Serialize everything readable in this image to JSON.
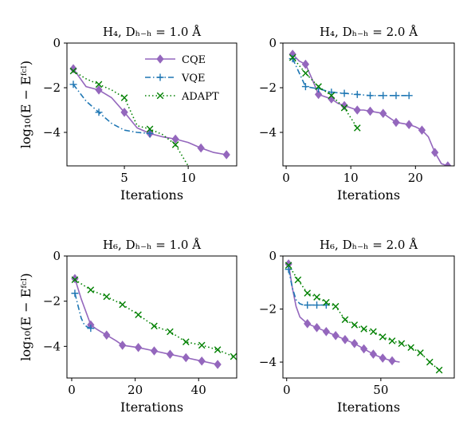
{
  "chart_data": [
    {
      "type": "line",
      "title": "H₄, Dₕ₋ₕ = 1.0 Å",
      "xlabel": "Iterations",
      "ylabel": "log₁₀(E − Eᶠᶜᴵ)",
      "xlim": [
        0.5,
        13.8
      ],
      "ylim": [
        -5.5,
        0
      ],
      "xticks": [
        5,
        10
      ],
      "yticks": [
        0,
        -2,
        -4
      ],
      "grid": false,
      "legend": "top-right",
      "series": [
        {
          "name": "CQE",
          "color": "#9467bd",
          "style": "solid",
          "marker": "diamond",
          "x": [
            1,
            2,
            3,
            4,
            5,
            6,
            7,
            8,
            9,
            10,
            11,
            12,
            13
          ],
          "y": [
            -1.15,
            -1.95,
            -2.1,
            -2.45,
            -3.1,
            -3.8,
            -4.05,
            -4.2,
            -4.3,
            -4.45,
            -4.7,
            -4.9,
            -5.0
          ],
          "markers_at": [
            1,
            3,
            5,
            7,
            9,
            11,
            13
          ]
        },
        {
          "name": "VQE",
          "color": "#1f77b4",
          "style": "dashdot",
          "marker": "plus",
          "x": [
            1,
            2,
            3,
            4,
            5,
            6,
            7
          ],
          "y": [
            -1.85,
            -2.6,
            -3.1,
            -3.6,
            -3.9,
            -4.0,
            -4.05
          ],
          "markers_at": [
            1,
            3,
            7
          ]
        },
        {
          "name": "ADAPT",
          "color": "#008000",
          "style": "dotted",
          "marker": "x",
          "x": [
            1,
            2,
            3,
            4,
            5,
            6,
            7,
            8,
            9,
            10
          ],
          "y": [
            -1.25,
            -1.6,
            -1.85,
            -2.1,
            -2.45,
            -3.7,
            -3.85,
            -4.1,
            -4.55,
            -5.5
          ],
          "markers_at": [
            1,
            3,
            5,
            7,
            9
          ]
        }
      ]
    },
    {
      "type": "line",
      "title": "H₄, Dₕ₋ₕ = 2.0 Å",
      "xlabel": "Iterations",
      "ylabel": "",
      "xlim": [
        -0.5,
        26
      ],
      "ylim": [
        -5.5,
        0
      ],
      "xticks": [
        0,
        10,
        20
      ],
      "yticks": [
        0,
        -2,
        -4
      ],
      "grid": false,
      "series": [
        {
          "name": "CQE",
          "color": "#9467bd",
          "style": "solid",
          "marker": "diamond",
          "x": [
            1,
            2,
            3,
            4,
            5,
            6,
            7,
            8,
            9,
            10,
            11,
            12,
            13,
            14,
            15,
            16,
            17,
            18,
            19,
            20,
            21,
            22,
            23,
            24,
            25
          ],
          "y": [
            -0.5,
            -0.8,
            -0.95,
            -1.6,
            -2.3,
            -2.4,
            -2.5,
            -2.7,
            -2.8,
            -2.9,
            -3.0,
            -3.0,
            -3.05,
            -3.1,
            -3.15,
            -3.35,
            -3.55,
            -3.6,
            -3.65,
            -3.75,
            -3.9,
            -4.2,
            -4.9,
            -5.4,
            -5.5
          ],
          "markers_at": [
            1,
            3,
            5,
            7,
            9,
            11,
            13,
            15,
            17,
            19,
            21,
            23,
            25
          ]
        },
        {
          "name": "VQE",
          "color": "#1f77b4",
          "style": "dashdot",
          "marker": "plus",
          "x": [
            1,
            3,
            5,
            7,
            9,
            11,
            13,
            15,
            17,
            19
          ],
          "y": [
            -0.7,
            -1.95,
            -2.05,
            -2.2,
            -2.25,
            -2.3,
            -2.35,
            -2.35,
            -2.35,
            -2.35
          ]
        },
        {
          "name": "ADAPT",
          "color": "#008000",
          "style": "dotted",
          "marker": "x",
          "x": [
            1,
            3,
            5,
            7,
            9,
            11
          ],
          "y": [
            -0.65,
            -1.35,
            -1.95,
            -2.35,
            -2.9,
            -3.8
          ]
        }
      ]
    },
    {
      "type": "line",
      "title": "H₆, Dₕ₋ₕ = 1.0 Å",
      "xlabel": "Iterations",
      "ylabel": "log₁₀(E − Eᶠᶜᴵ)",
      "xlim": [
        -1.5,
        52
      ],
      "ylim": [
        -5.4,
        0
      ],
      "xticks": [
        0,
        20,
        40
      ],
      "yticks": [
        0,
        -2,
        -4
      ],
      "grid": false,
      "series": [
        {
          "name": "CQE",
          "color": "#9467bd",
          "style": "solid",
          "marker": "diamond",
          "x": [
            1,
            3,
            6,
            8,
            11,
            14,
            16,
            21,
            26,
            31,
            36,
            41,
            46
          ],
          "y": [
            -1.0,
            -1.9,
            -3.05,
            -3.25,
            -3.5,
            -3.75,
            -3.95,
            -4.05,
            -4.2,
            -4.35,
            -4.5,
            -4.65,
            -4.8
          ],
          "markers_at": [
            1,
            6,
            11,
            16,
            21,
            26,
            31,
            36,
            41,
            46
          ]
        },
        {
          "name": "VQE",
          "color": "#1f77b4",
          "style": "dashdot",
          "marker": "plus",
          "x": [
            1,
            2,
            3,
            4,
            5,
            6,
            7
          ],
          "y": [
            -1.65,
            -2.2,
            -2.75,
            -3.05,
            -3.15,
            -3.2,
            -3.2
          ],
          "markers_at": [
            1,
            6
          ]
        },
        {
          "name": "ADAPT",
          "color": "#008000",
          "style": "dotted",
          "marker": "x",
          "x": [
            1,
            6,
            11,
            16,
            21,
            26,
            31,
            36,
            41,
            46,
            51
          ],
          "y": [
            -1.05,
            -1.5,
            -1.8,
            -2.15,
            -2.6,
            -3.1,
            -3.35,
            -3.8,
            -3.95,
            -4.15,
            -4.45
          ]
        }
      ]
    },
    {
      "type": "line",
      "title": "H₆, Dₕ₋ₕ = 2.0 Å",
      "xlabel": "Iterations",
      "ylabel": "",
      "xlim": [
        -2,
        89
      ],
      "ylim": [
        -4.6,
        0
      ],
      "xticks": [
        0,
        50
      ],
      "yticks": [
        0,
        -2,
        -4
      ],
      "grid": false,
      "series": [
        {
          "name": "CQE",
          "color": "#9467bd",
          "style": "solid",
          "marker": "diamond",
          "x": [
            1,
            3,
            5,
            7,
            11,
            16,
            21,
            26,
            31,
            36,
            41,
            46,
            51,
            56,
            60
          ],
          "y": [
            -0.3,
            -1.2,
            -1.9,
            -2.3,
            -2.55,
            -2.7,
            -2.85,
            -3.0,
            -3.15,
            -3.3,
            -3.5,
            -3.7,
            -3.85,
            -3.95,
            -4.0
          ],
          "markers_at": [
            1,
            6,
            11,
            16,
            21,
            26,
            31,
            36,
            41,
            46,
            51,
            56
          ]
        },
        {
          "name": "VQE",
          "color": "#1f77b4",
          "style": "dashdot",
          "marker": "plus",
          "x": [
            1,
            3,
            5,
            7,
            9,
            11,
            13,
            16,
            21
          ],
          "y": [
            -0.5,
            -1.2,
            -1.65,
            -1.8,
            -1.85,
            -1.85,
            -1.85,
            -1.85,
            -1.85
          ],
          "markers_at": [
            1,
            6,
            11,
            16,
            21
          ]
        },
        {
          "name": "ADAPT",
          "color": "#008000",
          "style": "dotted",
          "marker": "x",
          "x": [
            1,
            6,
            11,
            16,
            21,
            26,
            31,
            36,
            41,
            46,
            51,
            56,
            61,
            66,
            71,
            76,
            81
          ],
          "y": [
            -0.35,
            -0.9,
            -1.4,
            -1.55,
            -1.75,
            -1.9,
            -2.4,
            -2.6,
            -2.75,
            -2.85,
            -3.05,
            -3.2,
            -3.3,
            -3.45,
            -3.65,
            -4.0,
            -4.3
          ]
        }
      ]
    }
  ]
}
